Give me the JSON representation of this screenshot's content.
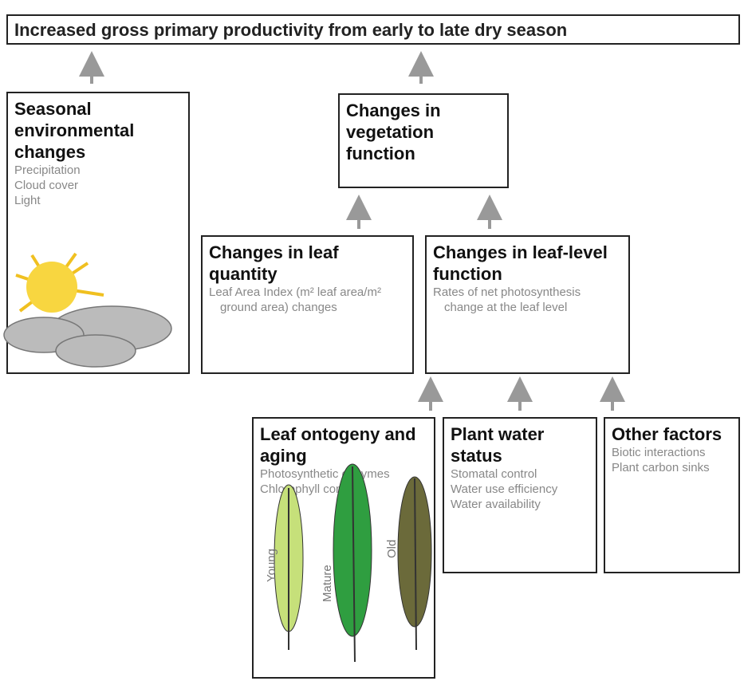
{
  "header": {
    "title": "Increased gross primary productivity from early to late dry season"
  },
  "nodes": [
    {
      "title": "Seasonal environmental changes",
      "items": [
        "Precipitation",
        "Cloud cover",
        "Light"
      ]
    },
    {
      "title": "Changes in vegetation function",
      "items": []
    },
    {
      "title": "Changes in leaf quantity",
      "items": [
        "Leaf Area Index (m² leaf area/m² ground area) changes"
      ]
    },
    {
      "title": "Changes in leaf-level function",
      "items": [
        "Rates of net photosynthesis change at the leaf level"
      ]
    },
    {
      "title": "Leaf ontogeny and aging",
      "items": [
        "Photosynthetic enzymes",
        "Chlorophyll content"
      ]
    },
    {
      "title": "Plant water status",
      "items": [
        "Stomatal control",
        "Water use efficiency",
        "Water availability"
      ]
    },
    {
      "title": "Other factors",
      "items": [
        "Biotic interactions",
        "Plant carbon sinks"
      ]
    }
  ],
  "leaves": [
    "Young",
    "Mature",
    "Old"
  ]
}
